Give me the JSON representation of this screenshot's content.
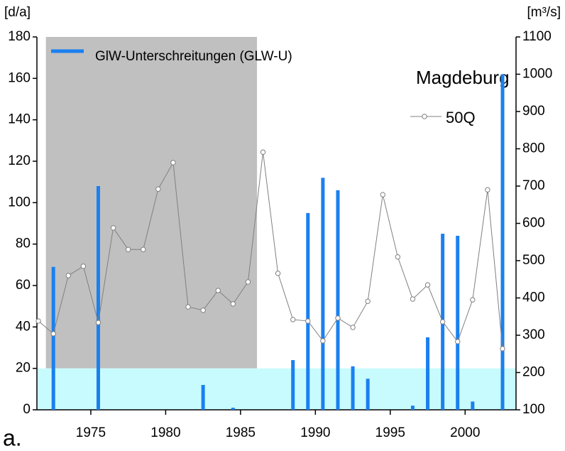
{
  "chart_data": {
    "type": "bar-line",
    "title": "Magdeburg",
    "y_label": "[d/a]",
    "y2_label": "[m³/s]",
    "panel_label": "a.",
    "xlim": [
      1971.4,
      2003.4
    ],
    "xticks": [
      1975,
      1980,
      1985,
      1990,
      1995,
      2000
    ],
    "ylim": [
      0,
      180
    ],
    "yticks": [
      0,
      20,
      40,
      60,
      80,
      100,
      120,
      140,
      160,
      180
    ],
    "y2lim": [
      100,
      1100
    ],
    "y2ticks": [
      100,
      200,
      300,
      400,
      500,
      600,
      700,
      800,
      900,
      1000,
      1100
    ],
    "shaded_regions": [
      {
        "x": [
          1972,
          1986.1
        ],
        "y": [
          20,
          180
        ],
        "color": "#c0c0c0"
      },
      {
        "x": [
          1971.4,
          2003.4
        ],
        "y": [
          0,
          20
        ],
        "color": "#c8fbfd"
      }
    ],
    "series": [
      {
        "name": "GlW-Unterschreitungen (GLW-U)",
        "color": "#1a80f0",
        "x": [
          1972.5,
          1975.5,
          1982.5,
          1984.5,
          1988.5,
          1989.5,
          1990.5,
          1991.5,
          1992.5,
          1993.5,
          1996.5,
          1997.5,
          1998.5,
          1999.5,
          2000.5,
          2002.5
        ],
        "values": [
          69,
          108,
          12,
          1,
          24,
          95,
          112,
          106,
          21,
          15,
          2,
          35,
          85,
          84,
          4,
          162
        ]
      },
      {
        "name": "50Q",
        "axis": "y2",
        "color": "#808080",
        "x": [
          1971.5,
          1972.5,
          1973.5,
          1974.5,
          1975.5,
          1976.5,
          1977.5,
          1978.5,
          1979.5,
          1980.5,
          1981.5,
          1982.5,
          1983.5,
          1984.5,
          1985.5,
          1986.5,
          1987.5,
          1988.5,
          1989.5,
          1990.5,
          1991.5,
          1992.5,
          1993.5,
          1994.5,
          1995.5,
          1996.5,
          1997.5,
          1998.5,
          1999.5,
          2000.5,
          2001.5,
          2002.5
        ],
        "values": [
          338,
          304,
          460,
          485,
          334,
          588,
          530,
          530,
          692,
          763,
          376,
          367,
          420,
          384,
          443,
          791,
          466,
          342,
          338,
          285,
          346,
          321,
          391,
          677,
          510,
          397,
          435,
          336,
          283,
          395,
          690,
          264
        ]
      }
    ]
  }
}
